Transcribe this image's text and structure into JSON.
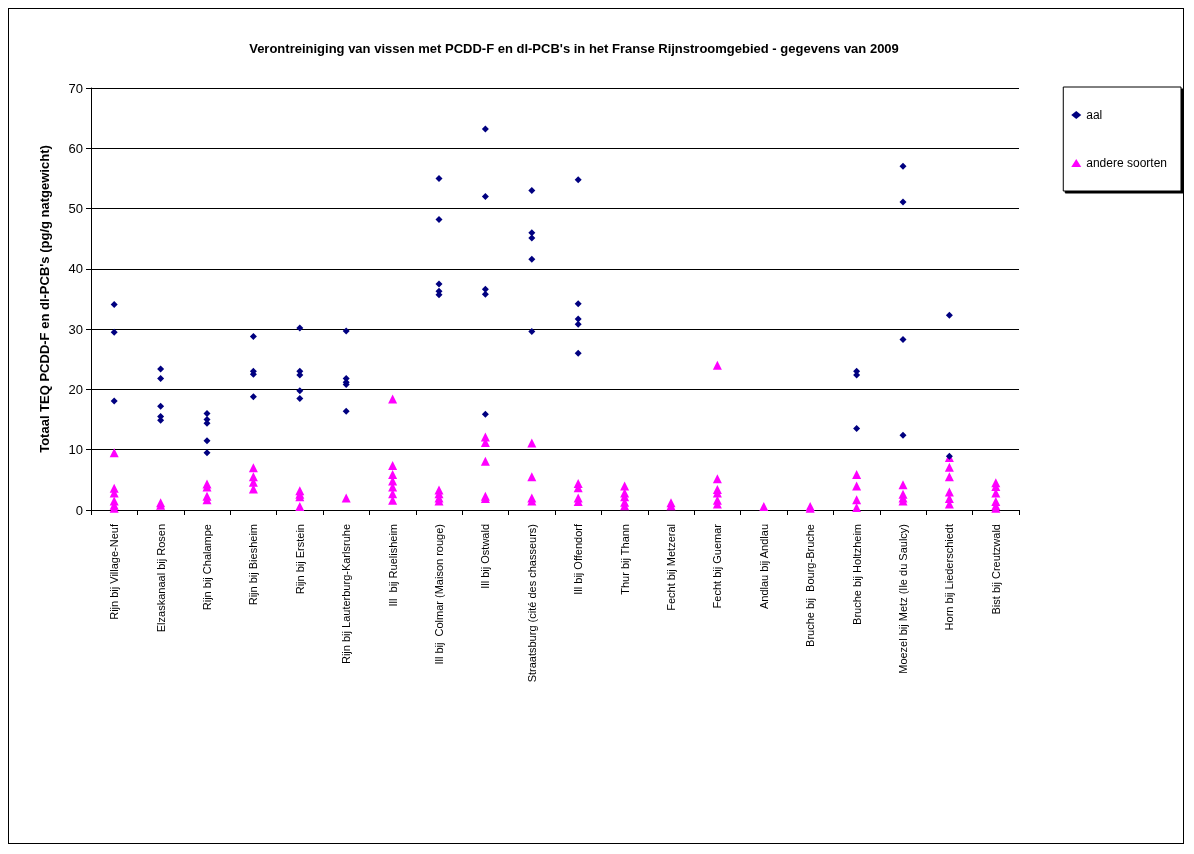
{
  "chart_data": {
    "type": "scatter",
    "title": "Verontreiniging van vissen met PCDD-F en dl-PCB's in het Franse Rijnstroomgebied - gegevens van 2009",
    "ylabel": "Totaal TEQ PCDD-F en dl-PCB's (pg/g natgewicht)",
    "categories": [
      "Rijn bij Village-Neuf",
      "Elzaskanaal bij Rosen",
      "Rijn bij Chalampe",
      "Rijn bij Biesheim",
      "Rijn bij Erstein",
      "Rijn bij Lauterburg-Karlsruhe",
      "Ill  bij Ruelisheim",
      "Ill bij  Colmar (Maison rouge)",
      "Ill bij Ostwald",
      "Straatsburg (cité des chasseurs)",
      "Ill bij Offendorf",
      "Thur bij Thann",
      "Fecht bij Metzeral",
      "Fecht bij Guemar",
      "Andlau bij Andlau",
      "Bruche bij  Bourg-Bruche",
      "Bruche bij Holtzheim",
      "Moezel bij Metz (Ile du Saulcy)",
      "Horn bij Liederschiedt",
      "Bist bij Creutzwald"
    ],
    "series": [
      {
        "name": "aal",
        "color": "#000080",
        "marker": "diamond",
        "x": [
          "Rijn bij Village-Neuf",
          "Rijn bij Village-Neuf",
          "Rijn bij Village-Neuf",
          "Elzaskanaal bij Rosen",
          "Elzaskanaal bij Rosen",
          "Elzaskanaal bij Rosen",
          "Elzaskanaal bij Rosen",
          "Elzaskanaal bij Rosen",
          "Rijn bij Chalampe",
          "Rijn bij Chalampe",
          "Rijn bij Chalampe",
          "Rijn bij Chalampe",
          "Rijn bij Chalampe",
          "Rijn bij Biesheim",
          "Rijn bij Biesheim",
          "Rijn bij Biesheim",
          "Rijn bij Biesheim",
          "Rijn bij Erstein",
          "Rijn bij Erstein",
          "Rijn bij Erstein",
          "Rijn bij Erstein",
          "Rijn bij Erstein",
          "Rijn bij Lauterburg-Karlsruhe",
          "Rijn bij Lauterburg-Karlsruhe",
          "Rijn bij Lauterburg-Karlsruhe",
          "Rijn bij Lauterburg-Karlsruhe",
          "Rijn bij Lauterburg-Karlsruhe",
          "Ill bij  Colmar (Maison rouge)",
          "Ill bij  Colmar (Maison rouge)",
          "Ill bij  Colmar (Maison rouge)",
          "Ill bij  Colmar (Maison rouge)",
          "Ill bij  Colmar (Maison rouge)",
          "Ill bij Ostwald",
          "Ill bij Ostwald",
          "Ill bij Ostwald",
          "Ill bij Ostwald",
          "Ill bij Ostwald",
          "Straatsburg (cité des chasseurs)",
          "Straatsburg (cité des chasseurs)",
          "Straatsburg (cité des chasseurs)",
          "Straatsburg (cité des chasseurs)",
          "Straatsburg (cité des chasseurs)",
          "Ill bij Offendorf",
          "Ill bij Offendorf",
          "Ill bij Offendorf",
          "Ill bij Offendorf",
          "Ill bij Offendorf",
          "Bruche bij Holtzheim",
          "Bruche bij Holtzheim",
          "Bruche bij Holtzheim",
          "Moezel bij Metz (Ile du Saulcy)",
          "Moezel bij Metz (Ile du Saulcy)",
          "Moezel bij Metz (Ile du Saulcy)",
          "Moezel bij Metz (Ile du Saulcy)",
          "Horn bij Liederschiedt",
          "Horn bij Liederschiedt"
        ],
        "values": [
          34.1,
          29.5,
          18.1,
          23.4,
          21.8,
          17.2,
          15.5,
          14.9,
          16.0,
          15.0,
          14.4,
          11.5,
          9.5,
          28.8,
          23.0,
          22.5,
          18.8,
          30.2,
          23.0,
          22.4,
          19.8,
          18.5,
          29.7,
          21.8,
          21.2,
          20.8,
          16.4,
          55.0,
          48.2,
          37.5,
          36.3,
          35.7,
          63.2,
          52.0,
          36.6,
          35.8,
          15.9,
          53.0,
          46.0,
          45.1,
          41.6,
          29.6,
          54.8,
          34.2,
          31.7,
          30.8,
          26.0,
          23.0,
          22.4,
          13.5,
          57.0,
          51.1,
          28.3,
          12.4,
          32.3,
          8.9
        ]
      },
      {
        "name": "andere soorten",
        "color": "#ff00ff",
        "marker": "triangle",
        "x": [
          "Rijn bij Village-Neuf",
          "Rijn bij Village-Neuf",
          "Rijn bij Village-Neuf",
          "Rijn bij Village-Neuf",
          "Rijn bij Village-Neuf",
          "Rijn bij Village-Neuf",
          "Elzaskanaal bij Rosen",
          "Elzaskanaal bij Rosen",
          "Rijn bij Chalampe",
          "Rijn bij Chalampe",
          "Rijn bij Chalampe",
          "Rijn bij Chalampe",
          "Rijn bij Biesheim",
          "Rijn bij Biesheim",
          "Rijn bij Biesheim",
          "Rijn bij Biesheim",
          "Rijn bij Erstein",
          "Rijn bij Erstein",
          "Rijn bij Erstein",
          "Rijn bij Erstein",
          "Rijn bij Lauterburg-Karlsruhe",
          "Ill  bij Ruelisheim",
          "Ill  bij Ruelisheim",
          "Ill  bij Ruelisheim",
          "Ill  bij Ruelisheim",
          "Ill  bij Ruelisheim",
          "Ill  bij Ruelisheim",
          "Ill  bij Ruelisheim",
          "Ill bij  Colmar (Maison rouge)",
          "Ill bij  Colmar (Maison rouge)",
          "Ill bij  Colmar (Maison rouge)",
          "Ill bij  Colmar (Maison rouge)",
          "Ill bij Ostwald",
          "Ill bij Ostwald",
          "Ill bij Ostwald",
          "Ill bij Ostwald",
          "Ill bij Ostwald",
          "Straatsburg (cité des chasseurs)",
          "Straatsburg (cité des chasseurs)",
          "Straatsburg (cité des chasseurs)",
          "Straatsburg (cité des chasseurs)",
          "Ill bij Offendorf",
          "Ill bij Offendorf",
          "Ill bij Offendorf",
          "Ill bij Offendorf",
          "Thur bij Thann",
          "Thur bij Thann",
          "Thur bij Thann",
          "Thur bij Thann",
          "Thur bij Thann",
          "Fecht bij Metzeral",
          "Fecht bij Metzeral",
          "Fecht bij Guemar",
          "Fecht bij Guemar",
          "Fecht bij Guemar",
          "Fecht bij Guemar",
          "Fecht bij Guemar",
          "Fecht bij Guemar",
          "Andlau bij Andlau",
          "Bruche bij  Bourg-Bruche",
          "Bruche bij  Bourg-Bruche",
          "Bruche bij Holtzheim",
          "Bruche bij Holtzheim",
          "Bruche bij Holtzheim",
          "Bruche bij Holtzheim",
          "Moezel bij Metz (Ile du Saulcy)",
          "Moezel bij Metz (Ile du Saulcy)",
          "Moezel bij Metz (Ile du Saulcy)",
          "Moezel bij Metz (Ile du Saulcy)",
          "Horn bij Liederschiedt",
          "Horn bij Liederschiedt",
          "Horn bij Liederschiedt",
          "Horn bij Liederschiedt",
          "Horn bij Liederschiedt",
          "Horn bij Liederschiedt",
          "Bist bij Creutzwald",
          "Bist bij Creutzwald",
          "Bist bij Creutzwald",
          "Bist bij Creutzwald",
          "Bist bij Creutzwald",
          "Bist bij Creutzwald"
        ],
        "values": [
          9.5,
          3.6,
          2.8,
          1.5,
          0.8,
          0.3,
          1.2,
          0.8,
          4.3,
          3.8,
          2.3,
          1.7,
          7.0,
          5.5,
          4.6,
          3.5,
          3.2,
          2.6,
          2.2,
          0.6,
          2.0,
          18.4,
          7.4,
          5.9,
          4.8,
          3.8,
          2.7,
          1.6,
          3.3,
          2.7,
          2.0,
          1.5,
          12.1,
          11.2,
          8.1,
          2.3,
          1.9,
          11.1,
          5.5,
          2.0,
          1.5,
          4.4,
          3.7,
          2.0,
          1.4,
          4.0,
          2.8,
          2.2,
          1.3,
          0.7,
          1.2,
          0.7,
          24.0,
          5.2,
          3.4,
          2.8,
          1.6,
          1.0,
          0.6,
          0.6,
          0.3,
          5.9,
          4.0,
          1.7,
          0.4,
          4.2,
          2.6,
          2.0,
          1.5,
          8.7,
          7.1,
          5.5,
          3.0,
          1.9,
          1.0,
          4.5,
          3.9,
          2.8,
          1.4,
          0.7,
          0.3
        ]
      }
    ],
    "ylim": [
      0,
      70
    ],
    "yticks": [
      0,
      10,
      20,
      30,
      40,
      50,
      60,
      70
    ],
    "grid": "y",
    "legend": "top right"
  }
}
